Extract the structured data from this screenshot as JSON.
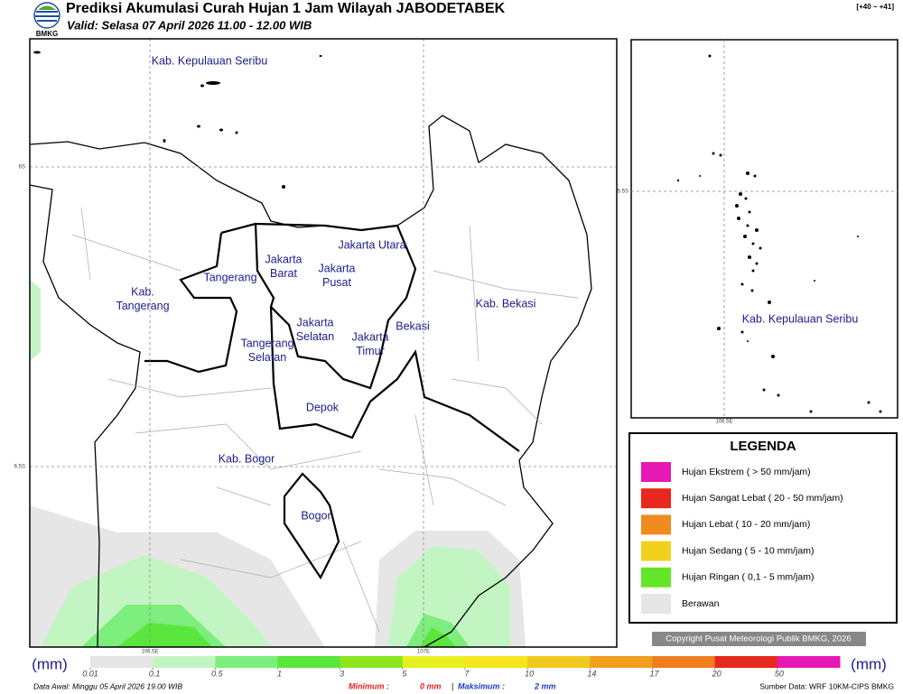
{
  "header": {
    "title": "Prediksi Akumulasi Curah Hujan 1 Jam Wilayah JABODETABEK",
    "subtitle": "Valid: Selasa 07 April 2026 11.00 - 12.00 WIB",
    "logo": "BMKG",
    "range": "[+40 ~ +41]"
  },
  "map": {
    "labels": [
      {
        "lines": [
          "Kab. Kepulauan Seribu"
        ]
      },
      {
        "lines": [
          "Jakarta Utara"
        ]
      },
      {
        "lines": [
          "Jakarta",
          "Barat"
        ]
      },
      {
        "lines": [
          "Jakarta",
          "Pusat"
        ]
      },
      {
        "lines": [
          "Tangerang"
        ]
      },
      {
        "lines": [
          "Kab.",
          "Tangerang"
        ]
      },
      {
        "lines": [
          "Jakarta",
          "Selatan"
        ]
      },
      {
        "lines": [
          "Jakarta",
          "Timur"
        ]
      },
      {
        "lines": [
          "Bekasi"
        ]
      },
      {
        "lines": [
          "Kab. Bekasi"
        ]
      },
      {
        "lines": [
          "Tangerang",
          "Selatan"
        ]
      },
      {
        "lines": [
          "Depok"
        ]
      },
      {
        "lines": [
          "Kab. Bogor"
        ]
      },
      {
        "lines": [
          "Bogor"
        ]
      }
    ],
    "lat_labels": [
      "6S",
      "6.5S"
    ],
    "lon_labels": [
      "106.5E",
      "107E"
    ]
  },
  "inset": {
    "label": "Kab. Kepulauan Seribu",
    "lat_label": "5.5S",
    "lon_label": "106.5E"
  },
  "legend": {
    "title": "LEGENDA",
    "items": [
      {
        "name": "Hujan Ekstrem ( > 50 mm/jam)",
        "color": "#e619b4"
      },
      {
        "name": "Hujan Sangat Lebat ( 20 - 50 mm/jam)",
        "color": "#e6281e"
      },
      {
        "name": "Hujan Lebat ( 10 - 20 mm/jam)",
        "color": "#f08c1e"
      },
      {
        "name": "Hujan Sedang ( 5 - 10 mm/jam)",
        "color": "#f0d21e"
      },
      {
        "name": "Hujan Ringan ( 0,1 - 5 mm/jam)",
        "color": "#64e628"
      },
      {
        "name": "Berawan",
        "color": "#e6e6e6"
      }
    ]
  },
  "copyright": "Copyright Pusat Meteorologi Publik BMKG, 2026",
  "colorbar": {
    "unit_left": "(mm)",
    "unit_right": "(mm)",
    "ticks": [
      0.01,
      0.1,
      0.5,
      1,
      3,
      5,
      7,
      10,
      14,
      17,
      20,
      50
    ],
    "colors": [
      "#e6e6e6",
      "#c3f5c3",
      "#7ded7d",
      "#5ae63c",
      "#8ce61e",
      "#e6f01e",
      "#f5e61e",
      "#f0c81e",
      "#f0a01e",
      "#f07d1e",
      "#e6281e",
      "#e619b4"
    ]
  },
  "footer": {
    "data_awal": "Data Awal: Minggu 05 April 2026 19.00 WIB",
    "min_label": "Minimum :",
    "min_value": "0 mm",
    "separator": "|",
    "max_label": "Maksimum :",
    "max_value": "2 mm",
    "source": "Sumber Data: WRF 10KM-CIPS BMKG"
  }
}
